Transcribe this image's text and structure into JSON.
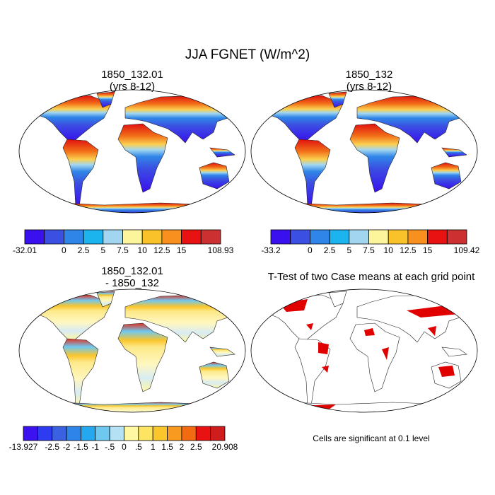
{
  "title": "JJA FGNET (W/m^2)",
  "panels": [
    {
      "title": [
        "1850_132.01",
        "(yrs 8-12)"
      ],
      "colorbar": {
        "colors": [
          "#3a10ee",
          "#3b4fe2",
          "#2f86e8",
          "#1cb4ee",
          "#a2d6f0",
          "#fcf59c",
          "#fac22a",
          "#f7901e",
          "#e81212",
          "#cc3030"
        ],
        "labels": [
          "-32.01",
          null,
          "0",
          "2.5",
          "5",
          "7.5",
          "10",
          "12.5",
          "15",
          null,
          "108.93"
        ]
      }
    },
    {
      "title": [
        "1850_132",
        "(yrs 8-12)"
      ],
      "colorbar": {
        "colors": [
          "#3a10ee",
          "#3b4fe2",
          "#2f86e8",
          "#1cb4ee",
          "#a2d6f0",
          "#fcf59c",
          "#fac22a",
          "#f7901e",
          "#e81212",
          "#cc3030"
        ],
        "labels": [
          "-33.2",
          null,
          "0",
          "2.5",
          "5",
          "7.5",
          "10",
          "12.5",
          "15",
          null,
          "109.42"
        ]
      }
    },
    {
      "title": [
        "1850_132.01",
        "- 1850_132"
      ],
      "colorbar": {
        "colors": [
          "#3c12f0",
          "#2d3cf0",
          "#3a62e0",
          "#2f84ea",
          "#24a8f0",
          "#6ec8f0",
          "#b4e2f4",
          "#fff7a2",
          "#fde462",
          "#fbc52c",
          "#f99a20",
          "#f26a12",
          "#e81212",
          "#cf1c1c"
        ],
        "labels": [
          "-13.927",
          null,
          "-2.5",
          "-2",
          "-1.5",
          "-1",
          "-.5",
          "0",
          ".5",
          "1",
          "1.5",
          "2",
          "2.5",
          null,
          "20.908"
        ]
      }
    }
  ],
  "ttest": {
    "title": "T-Test of two Case means at each grid point",
    "note": "Cells are significant at 0.1 level"
  }
}
